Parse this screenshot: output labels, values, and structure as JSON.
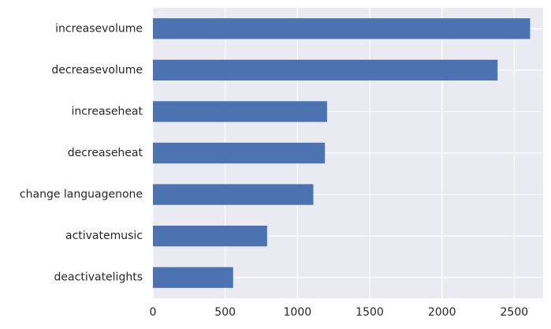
{
  "chart_data": {
    "type": "bar",
    "orientation": "horizontal",
    "title": "",
    "xlabel": "",
    "ylabel": "",
    "categories": [
      "increasevolume",
      "decreasevolume",
      "increaseheat",
      "decreaseheat",
      "change languagenone",
      "activatemusic",
      "deactivatelights"
    ],
    "values": [
      2610,
      2385,
      1205,
      1190,
      1110,
      790,
      555
    ],
    "xlim": [
      0,
      2700
    ],
    "x_ticks": [
      0,
      500,
      1000,
      1500,
      2000,
      2500
    ],
    "x_tick_labels": [
      "0",
      "500",
      "1000",
      "1500",
      "2000",
      "2500"
    ],
    "grid": true,
    "legend": "none",
    "colors": {
      "bar": "#4c72b0",
      "background": "#eaeaf2",
      "grid": "#ffffff",
      "text": "#262626"
    }
  }
}
